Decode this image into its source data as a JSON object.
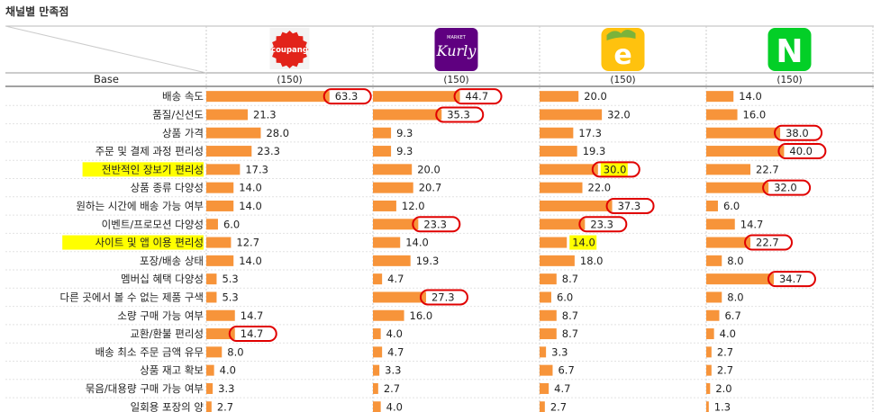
{
  "title": "채널별 만족점",
  "base_label": "Base",
  "channels": [
    {
      "logo": "coupang",
      "logo_text": "coupang",
      "base": "(150)",
      "color": "#e2231a"
    },
    {
      "logo": "kurly",
      "logo_text": "Kurly",
      "logo_sub": "MARKET",
      "base": "(150)",
      "color": "#5f0080"
    },
    {
      "logo": "emart-e",
      "logo_text": "e",
      "base": "(150)",
      "color": "#ffc20e"
    },
    {
      "logo": "naver-n",
      "logo_text": "N",
      "base": "(150)",
      "color": "#03cf27"
    }
  ],
  "chart_data": {
    "type": "bar",
    "orientation": "horizontal",
    "title": "채널별 만족점",
    "categories": [
      "배송 속도",
      "품질/신선도",
      "상품 가격",
      "주문 및 결제 과정 편리성",
      "전반적인 장보기 편리성",
      "상품 종류 다양성",
      "원하는 시간에 배송 가능 여부",
      "이벤트/프로모션 다양성",
      "사이트 및 앱 이용 편리성",
      "포장/배송 상태",
      "멤버십 혜택 다양성",
      "다른 곳에서 볼 수 없는 제품 구색",
      "소량 구매 가능 여부",
      "교환/환불 편리성",
      "배송 최소 주문 금액 유무",
      "상품 재고 확보",
      "묶음/대용량 구매 가능 여부",
      "일회용 포장의 양"
    ],
    "highlighted_categories": [
      "전반적인 장보기 편리성",
      "사이트 및 앱 이용 편리성"
    ],
    "series": [
      {
        "values": [
          63.3,
          21.3,
          28.0,
          23.3,
          17.3,
          14.0,
          14.0,
          6.0,
          12.7,
          14.0,
          5.3,
          5.3,
          14.7,
          14.7,
          8.0,
          4.0,
          3.3,
          2.7
        ],
        "circled": [
          0,
          13
        ],
        "highlighted": []
      },
      {
        "values": [
          44.7,
          35.3,
          9.3,
          9.3,
          20.0,
          20.7,
          12.0,
          23.3,
          14.0,
          19.3,
          4.7,
          27.3,
          16.0,
          4.0,
          4.7,
          3.3,
          2.7,
          4.0
        ],
        "circled": [
          0,
          1,
          7,
          11
        ],
        "highlighted": []
      },
      {
        "values": [
          20.0,
          32.0,
          17.3,
          19.3,
          30.0,
          22.0,
          37.3,
          23.3,
          14.0,
          18.0,
          8.7,
          6.0,
          8.7,
          8.7,
          3.3,
          6.7,
          4.7,
          2.7
        ],
        "circled": [
          4,
          6,
          7
        ],
        "highlighted": [
          4,
          8
        ]
      },
      {
        "values": [
          14.0,
          16.0,
          38.0,
          40.0,
          22.7,
          32.0,
          6.0,
          14.7,
          22.7,
          8.0,
          34.7,
          8.0,
          6.7,
          4.0,
          2.7,
          2.7,
          2.0,
          1.3
        ],
        "circled": [
          2,
          3,
          5,
          8,
          10
        ],
        "highlighted": []
      }
    ],
    "value_format": "0.0",
    "circle_color": "#e00000",
    "highlight_color": "#ffff00",
    "bar_color": "#f7943a"
  }
}
